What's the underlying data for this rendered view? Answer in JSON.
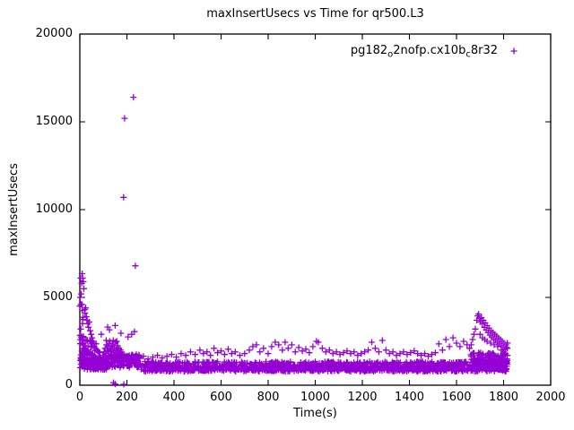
{
  "figure": {
    "title": "maxInsertUsecs vs Time for qr500.L3",
    "xlabel": "Time(s)",
    "ylabel": "maxInsertUsecs"
  },
  "chart_data": {
    "type": "scatter",
    "title": "maxInsertUsecs vs Time for qr500.L3",
    "xlabel": "Time(s)",
    "ylabel": "maxInsertUsecs",
    "xlim": [
      0,
      2000
    ],
    "ylim": [
      0,
      20000
    ],
    "xticks": [
      0,
      200,
      400,
      600,
      800,
      1000,
      1200,
      1400,
      1600,
      1800,
      2000
    ],
    "yticks": [
      0,
      5000,
      10000,
      15000,
      20000
    ],
    "grid": false,
    "legend_position": "top-right-inside",
    "marker_color": "#9400D3",
    "series": [
      {
        "name": "pg182_o2nofp.cx10b_c8r32",
        "name_parts": [
          [
            "pg182",
            false
          ],
          [
            "o",
            true
          ],
          [
            "2nofp.cx10b",
            false
          ],
          [
            "c",
            true
          ],
          [
            "8r32",
            false
          ]
        ],
        "marker": "plus",
        "color": "#9400D3",
        "points": [
          [
            228,
            16400
          ],
          [
            190,
            15200
          ],
          [
            186,
            10700
          ],
          [
            236,
            6800
          ],
          [
            2,
            5000
          ],
          [
            3,
            6100
          ],
          [
            5,
            4600
          ],
          [
            6,
            5200
          ],
          [
            8,
            5800
          ],
          [
            10,
            6350
          ],
          [
            12,
            6100
          ],
          [
            15,
            5900
          ],
          [
            17,
            5500
          ],
          [
            20,
            4300
          ],
          [
            22,
            4100
          ],
          [
            25,
            4400
          ],
          [
            28,
            3900
          ],
          [
            31,
            3700
          ],
          [
            34,
            3500
          ],
          [
            37,
            3300
          ],
          [
            40,
            3600
          ],
          [
            44,
            3100
          ],
          [
            48,
            2900
          ],
          [
            52,
            2700
          ],
          [
            56,
            2500
          ],
          [
            60,
            2400
          ],
          [
            4,
            3200
          ],
          [
            7,
            2800
          ],
          [
            9,
            2600
          ],
          [
            13,
            2400
          ],
          [
            16,
            2250
          ],
          [
            19,
            2100
          ],
          [
            24,
            2000
          ],
          [
            29,
            1950
          ],
          [
            33,
            1900
          ],
          [
            38,
            1850
          ],
          [
            43,
            1800
          ],
          [
            47,
            1750
          ],
          [
            3,
            1400
          ],
          [
            5,
            1200
          ],
          [
            2,
            1000
          ],
          [
            6,
            1500
          ],
          [
            11,
            1650
          ],
          [
            14,
            1550
          ],
          [
            18,
            1500
          ],
          [
            23,
            1450
          ],
          [
            27,
            1400
          ],
          [
            32,
            1380
          ],
          [
            36,
            1350
          ],
          [
            42,
            1320
          ],
          [
            46,
            1300
          ],
          [
            50,
            1280
          ],
          [
            55,
            1260
          ],
          [
            58,
            1240
          ],
          [
            62,
            2200
          ],
          [
            66,
            2100
          ],
          [
            70,
            2000
          ],
          [
            75,
            1950
          ],
          [
            80,
            1900
          ],
          [
            85,
            1850
          ],
          [
            91,
            2900
          ],
          [
            64,
            1500
          ],
          [
            68,
            1480
          ],
          [
            72,
            1460
          ],
          [
            78,
            1440
          ],
          [
            84,
            1420
          ],
          [
            90,
            1400
          ],
          [
            96,
            1380
          ],
          [
            102,
            1360
          ],
          [
            98,
            1700
          ],
          [
            103,
            1900
          ],
          [
            107,
            2100
          ],
          [
            110,
            1800
          ],
          [
            113,
            2300
          ],
          [
            116,
            2000
          ],
          [
            119,
            2200
          ],
          [
            122,
            1900
          ],
          [
            125,
            2400
          ],
          [
            128,
            2100
          ],
          [
            131,
            1950
          ],
          [
            134,
            2250
          ],
          [
            137,
            2050
          ],
          [
            140,
            2350
          ],
          [
            143,
            1850
          ],
          [
            146,
            2150
          ],
          [
            149,
            1950
          ],
          [
            152,
            2450
          ],
          [
            155,
            2050
          ],
          [
            158,
            1850
          ],
          [
            161,
            2250
          ],
          [
            164,
            1950
          ],
          [
            167,
            2100
          ],
          [
            170,
            1800
          ],
          [
            173,
            2000
          ],
          [
            176,
            1900
          ],
          [
            179,
            1750
          ],
          [
            112,
            2550
          ],
          [
            127,
            2500
          ],
          [
            142,
            2550
          ],
          [
            157,
            2500
          ],
          [
            121,
            1700
          ],
          [
            136,
            1650
          ],
          [
            151,
            1700
          ],
          [
            166,
            1650
          ],
          [
            104,
            1600
          ],
          [
            109,
            1650
          ],
          [
            124,
            1600
          ],
          [
            139,
            1600
          ],
          [
            154,
            1620
          ],
          [
            169,
            1580
          ],
          [
            174,
            1620
          ],
          [
            118,
            3310
          ],
          [
            126,
            3160
          ],
          [
            150,
            3400
          ],
          [
            175,
            2960
          ],
          [
            205,
            2750
          ],
          [
            220,
            2900
          ],
          [
            232,
            3050
          ],
          [
            150,
            60
          ],
          [
            187,
            50
          ],
          [
            143,
            150
          ],
          [
            210,
            1700
          ],
          [
            225,
            1600
          ],
          [
            240,
            1750
          ],
          [
            255,
            1550
          ],
          [
            270,
            1650
          ],
          [
            290,
            1500
          ],
          [
            310,
            1600
          ],
          [
            330,
            1700
          ],
          [
            350,
            1550
          ],
          [
            370,
            1650
          ],
          [
            390,
            1750
          ],
          [
            410,
            1600
          ],
          [
            430,
            1800
          ],
          [
            450,
            1700
          ],
          [
            470,
            1900
          ],
          [
            490,
            1750
          ],
          [
            510,
            2000
          ],
          [
            525,
            1800
          ],
          [
            540,
            1900
          ],
          [
            555,
            1700
          ],
          [
            570,
            2100
          ],
          [
            585,
            1850
          ],
          [
            600,
            1950
          ],
          [
            615,
            1750
          ],
          [
            630,
            2050
          ],
          [
            645,
            1800
          ],
          [
            660,
            1900
          ],
          [
            680,
            1700
          ],
          [
            700,
            1800
          ],
          [
            720,
            2000
          ],
          [
            735,
            2200
          ],
          [
            750,
            2300
          ],
          [
            765,
            1900
          ],
          [
            780,
            2100
          ],
          [
            800,
            1800
          ],
          [
            815,
            2200
          ],
          [
            830,
            2450
          ],
          [
            845,
            2300
          ],
          [
            860,
            2000
          ],
          [
            872,
            2450
          ],
          [
            885,
            2100
          ],
          [
            900,
            2300
          ],
          [
            915,
            1900
          ],
          [
            930,
            2150
          ],
          [
            945,
            1950
          ],
          [
            960,
            2050
          ],
          [
            975,
            1850
          ],
          [
            990,
            2200
          ],
          [
            1005,
            2500
          ],
          [
            1013,
            2450
          ],
          [
            1030,
            2100
          ],
          [
            1045,
            1900
          ],
          [
            1060,
            2000
          ],
          [
            1075,
            1800
          ],
          [
            1090,
            1900
          ],
          [
            1105,
            1750
          ],
          [
            1120,
            1850
          ],
          [
            1135,
            1950
          ],
          [
            1150,
            1800
          ],
          [
            1165,
            1900
          ],
          [
            1180,
            1700
          ],
          [
            1195,
            1800
          ],
          [
            1210,
            1900
          ],
          [
            1225,
            2000
          ],
          [
            1240,
            2450
          ],
          [
            1255,
            2100
          ],
          [
            1270,
            1900
          ],
          [
            1285,
            2550
          ],
          [
            1300,
            2000
          ],
          [
            1315,
            1800
          ],
          [
            1330,
            1900
          ],
          [
            1345,
            1700
          ],
          [
            1360,
            1800
          ],
          [
            1375,
            1900
          ],
          [
            1390,
            1750
          ],
          [
            1405,
            1850
          ],
          [
            1420,
            1950
          ],
          [
            1435,
            1800
          ],
          [
            1450,
            1700
          ],
          [
            1465,
            1800
          ],
          [
            1480,
            1650
          ],
          [
            1495,
            1750
          ],
          [
            1510,
            1850
          ],
          [
            1525,
            2350
          ],
          [
            1540,
            2000
          ],
          [
            1555,
            2600
          ],
          [
            1570,
            2200
          ],
          [
            1585,
            2700
          ],
          [
            1600,
            2400
          ],
          [
            1615,
            2200
          ],
          [
            1630,
            2500
          ],
          [
            1645,
            2300
          ],
          [
            1655,
            2100
          ],
          [
            1662,
            2300
          ],
          [
            1668,
            2600
          ],
          [
            1674,
            2900
          ],
          [
            1680,
            3200
          ],
          [
            1686,
            3700
          ],
          [
            1690,
            3950
          ],
          [
            1694,
            4050
          ],
          [
            1698,
            3800
          ],
          [
            1702,
            3600
          ],
          [
            1706,
            3850
          ],
          [
            1710,
            3500
          ],
          [
            1714,
            3700
          ],
          [
            1718,
            3300
          ],
          [
            1722,
            3550
          ],
          [
            1726,
            3150
          ],
          [
            1730,
            3400
          ],
          [
            1734,
            3000
          ],
          [
            1738,
            3250
          ],
          [
            1742,
            2850
          ],
          [
            1746,
            3100
          ],
          [
            1750,
            2750
          ],
          [
            1754,
            3000
          ],
          [
            1758,
            2650
          ],
          [
            1762,
            2900
          ],
          [
            1766,
            2550
          ],
          [
            1770,
            2800
          ],
          [
            1774,
            2450
          ],
          [
            1778,
            2700
          ],
          [
            1782,
            2350
          ],
          [
            1786,
            2600
          ],
          [
            1790,
            2250
          ],
          [
            1794,
            2500
          ],
          [
            1798,
            2150
          ],
          [
            1802,
            2400
          ],
          [
            1806,
            2050
          ],
          [
            1810,
            2300
          ],
          [
            1813,
            2150
          ],
          [
            1816,
            2400
          ],
          [
            1700,
            2900
          ],
          [
            1710,
            2700
          ],
          [
            1720,
            2600
          ],
          [
            1730,
            2500
          ],
          [
            1745,
            2400
          ],
          [
            1760,
            2300
          ],
          [
            1775,
            2200
          ],
          [
            1790,
            2000
          ],
          [
            1800,
            1900
          ],
          [
            1808,
            1800
          ],
          [
            1816,
            1700
          ],
          [
            1816,
            2100
          ],
          [
            1814,
            1500
          ],
          [
            1812,
            1300
          ]
        ],
        "dense_bands": [
          {
            "t0": 15,
            "t1": 120,
            "n": 120,
            "vmin": 850,
            "vmax": 1600
          },
          {
            "t0": 120,
            "t1": 260,
            "n": 130,
            "vmin": 1000,
            "vmax": 1750
          },
          {
            "t0": 260,
            "t1": 1816,
            "n": 900,
            "vmin": 780,
            "vmax": 1340
          },
          {
            "t0": 300,
            "t1": 1816,
            "n": 420,
            "vmin": 820,
            "vmax": 1080
          },
          {
            "t0": 1660,
            "t1": 1816,
            "n": 110,
            "vmin": 1150,
            "vmax": 1850
          },
          {
            "t0": 0,
            "t1": 15,
            "n": 28,
            "vmin": 900,
            "vmax": 4600
          },
          {
            "t0": 18,
            "t1": 70,
            "n": 25,
            "vmin": 1600,
            "vmax": 2600
          }
        ]
      }
    ]
  }
}
